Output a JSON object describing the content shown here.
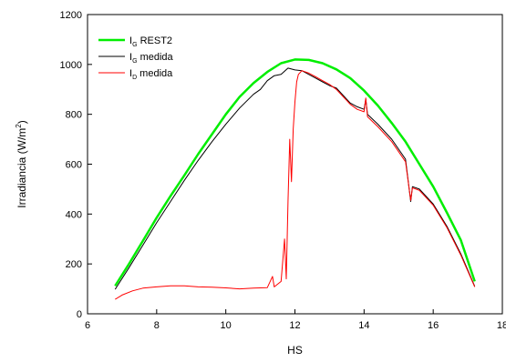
{
  "chart_data": {
    "type": "line",
    "xlabel": "HS",
    "ylabel": "Irradiancia (W/m",
    "ylabel_sup": "2",
    "ylabel_close": ")",
    "xlim": [
      6,
      18
    ],
    "ylim": [
      0,
      1200
    ],
    "x_ticks": [
      6,
      8,
      10,
      12,
      14,
      16,
      18
    ],
    "x_tick_labels": [
      "6",
      "8",
      "10",
      "12",
      "14",
      "16",
      "18"
    ],
    "y_ticks": [
      0,
      200,
      400,
      600,
      800,
      1000,
      1200
    ],
    "y_tick_labels": [
      "0",
      "200",
      "400",
      "600",
      "800",
      "1000",
      "1200"
    ],
    "legend_position": "top-left",
    "grid": false,
    "series": [
      {
        "name": "I",
        "name_sub": "G",
        "name_rest": " REST2",
        "color": "#00ee00",
        "points": [
          [
            6.8,
            112
          ],
          [
            7.2,
            200
          ],
          [
            7.6,
            292
          ],
          [
            8.0,
            385
          ],
          [
            8.4,
            472
          ],
          [
            8.8,
            555
          ],
          [
            9.2,
            640
          ],
          [
            9.6,
            720
          ],
          [
            10.0,
            800
          ],
          [
            10.4,
            870
          ],
          [
            10.8,
            925
          ],
          [
            11.2,
            970
          ],
          [
            11.6,
            1005
          ],
          [
            12.0,
            1020
          ],
          [
            12.4,
            1018
          ],
          [
            12.8,
            1005
          ],
          [
            13.2,
            980
          ],
          [
            13.6,
            945
          ],
          [
            14.0,
            895
          ],
          [
            14.4,
            835
          ],
          [
            14.8,
            765
          ],
          [
            15.2,
            690
          ],
          [
            15.6,
            600
          ],
          [
            16.0,
            510
          ],
          [
            16.4,
            405
          ],
          [
            16.8,
            295
          ],
          [
            17.2,
            130
          ]
        ]
      },
      {
        "name": "I",
        "name_sub": "G",
        "name_rest": " medida",
        "color": "#000000",
        "points": [
          [
            6.8,
            98
          ],
          [
            7.2,
            185
          ],
          [
            7.6,
            275
          ],
          [
            8.0,
            365
          ],
          [
            8.4,
            450
          ],
          [
            8.8,
            535
          ],
          [
            9.2,
            615
          ],
          [
            9.6,
            690
          ],
          [
            10.0,
            760
          ],
          [
            10.4,
            825
          ],
          [
            10.8,
            880
          ],
          [
            11.0,
            900
          ],
          [
            11.2,
            935
          ],
          [
            11.4,
            955
          ],
          [
            11.6,
            960
          ],
          [
            11.8,
            985
          ],
          [
            12.0,
            978
          ],
          [
            12.2,
            975
          ],
          [
            12.4,
            960
          ],
          [
            12.6,
            945
          ],
          [
            12.8,
            930
          ],
          [
            13.0,
            915
          ],
          [
            13.2,
            905
          ],
          [
            13.4,
            875
          ],
          [
            13.6,
            845
          ],
          [
            13.8,
            830
          ],
          [
            14.0,
            820
          ],
          [
            14.05,
            860
          ],
          [
            14.1,
            800
          ],
          [
            14.4,
            760
          ],
          [
            14.8,
            700
          ],
          [
            15.2,
            620
          ],
          [
            15.35,
            450
          ],
          [
            15.4,
            510
          ],
          [
            15.6,
            500
          ],
          [
            16.0,
            440
          ],
          [
            16.4,
            350
          ],
          [
            16.8,
            240
          ],
          [
            17.2,
            110
          ]
        ]
      },
      {
        "name": "I",
        "name_sub": "D",
        "name_rest": " medida",
        "color": "#ff0000",
        "points": [
          [
            6.8,
            58
          ],
          [
            7.0,
            75
          ],
          [
            7.3,
            92
          ],
          [
            7.6,
            103
          ],
          [
            8.0,
            108
          ],
          [
            8.4,
            112
          ],
          [
            8.8,
            112
          ],
          [
            9.2,
            108
          ],
          [
            9.6,
            107
          ],
          [
            10.0,
            104
          ],
          [
            10.4,
            100
          ],
          [
            10.8,
            103
          ],
          [
            11.2,
            105
          ],
          [
            11.35,
            150
          ],
          [
            11.4,
            108
          ],
          [
            11.6,
            130
          ],
          [
            11.7,
            300
          ],
          [
            11.75,
            140
          ],
          [
            11.8,
            450
          ],
          [
            11.85,
            700
          ],
          [
            11.9,
            530
          ],
          [
            11.95,
            740
          ],
          [
            12.0,
            850
          ],
          [
            12.05,
            930
          ],
          [
            12.1,
            960
          ],
          [
            12.2,
            975
          ],
          [
            12.4,
            965
          ],
          [
            12.6,
            950
          ],
          [
            12.8,
            935
          ],
          [
            13.0,
            920
          ],
          [
            13.2,
            900
          ],
          [
            13.4,
            870
          ],
          [
            13.6,
            840
          ],
          [
            13.8,
            820
          ],
          [
            14.0,
            810
          ],
          [
            14.05,
            865
          ],
          [
            14.1,
            790
          ],
          [
            14.4,
            750
          ],
          [
            14.8,
            690
          ],
          [
            15.2,
            610
          ],
          [
            15.35,
            455
          ],
          [
            15.4,
            505
          ],
          [
            15.6,
            495
          ],
          [
            16.0,
            435
          ],
          [
            16.4,
            345
          ],
          [
            16.8,
            235
          ],
          [
            17.2,
            108
          ]
        ]
      }
    ]
  }
}
